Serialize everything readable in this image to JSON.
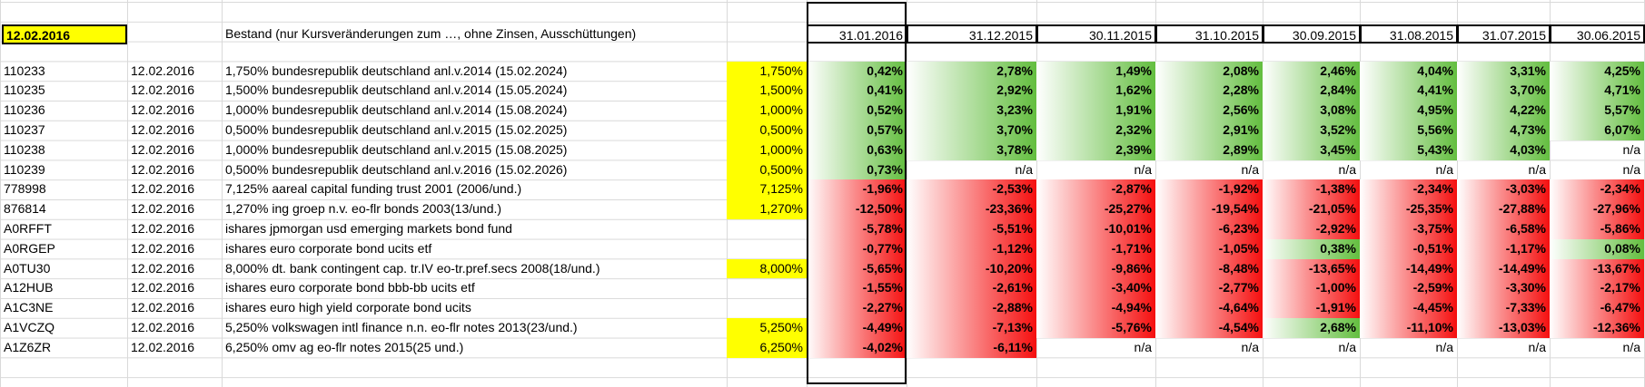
{
  "sheet": {
    "date_cell": "12.02.2016",
    "title": "Bestand (nur Kursveränderungen zum …, ohne Zinsen, Ausschüttungen)",
    "date_headers": [
      "31.01.2016",
      "31.12.2015",
      "30.11.2015",
      "31.10.2015",
      "30.09.2015",
      "31.08.2015",
      "31.07.2015",
      "30.06.2015"
    ],
    "rows": [
      {
        "id": "110233",
        "date": "12.02.2016",
        "name": "1,750% bundesrepublik deutschland anl.v.2014 (15.02.2024)",
        "coupon": "1,750%",
        "values": [
          "0,42%",
          "2,78%",
          "1,49%",
          "2,08%",
          "2,46%",
          "4,04%",
          "3,31%",
          "4,25%"
        ]
      },
      {
        "id": "110235",
        "date": "12.02.2016",
        "name": "1,500% bundesrepublik deutschland anl.v.2014 (15.05.2024)",
        "coupon": "1,500%",
        "values": [
          "0,41%",
          "2,92%",
          "1,62%",
          "2,28%",
          "2,84%",
          "4,41%",
          "3,70%",
          "4,71%"
        ]
      },
      {
        "id": "110236",
        "date": "12.02.2016",
        "name": "1,000% bundesrepublik deutschland anl.v.2014 (15.08.2024)",
        "coupon": "1,000%",
        "values": [
          "0,52%",
          "3,23%",
          "1,91%",
          "2,56%",
          "3,08%",
          "4,95%",
          "4,22%",
          "5,57%"
        ]
      },
      {
        "id": "110237",
        "date": "12.02.2016",
        "name": "0,500% bundesrepublik deutschland anl.v.2015 (15.02.2025)",
        "coupon": "0,500%",
        "values": [
          "0,57%",
          "3,70%",
          "2,32%",
          "2,91%",
          "3,52%",
          "5,56%",
          "4,73%",
          "6,07%"
        ]
      },
      {
        "id": "110238",
        "date": "12.02.2016",
        "name": "1,000% bundesrepublik deutschland anl.v.2015 (15.08.2025)",
        "coupon": "1,000%",
        "values": [
          "0,63%",
          "3,78%",
          "2,39%",
          "2,89%",
          "3,45%",
          "5,43%",
          "4,03%",
          "n/a"
        ]
      },
      {
        "id": "110239",
        "date": "12.02.2016",
        "name": "0,500% bundesrepublik deutschland anl.v.2016 (15.02.2026)",
        "coupon": "0,500%",
        "values": [
          "0,73%",
          "n/a",
          "n/a",
          "n/a",
          "n/a",
          "n/a",
          "n/a",
          "n/a"
        ]
      },
      {
        "id": "778998",
        "date": "12.02.2016",
        "name": "7,125% aareal capital funding trust 2001 (2006/und.)",
        "coupon": "7,125%",
        "values": [
          "-1,96%",
          "-2,53%",
          "-2,87%",
          "-1,92%",
          "-1,38%",
          "-2,34%",
          "-3,03%",
          "-2,34%"
        ]
      },
      {
        "id": "876814",
        "date": "12.02.2016",
        "name": "1,270% ing groep n.v. eo-flr bonds 2003(13/und.)",
        "coupon": "1,270%",
        "values": [
          "-12,50%",
          "-23,36%",
          "-25,27%",
          "-19,54%",
          "-21,05%",
          "-25,35%",
          "-27,88%",
          "-27,96%"
        ]
      },
      {
        "id": "A0RFFT",
        "date": "12.02.2016",
        "name": "ishares jpmorgan usd emerging markets bond fund",
        "coupon": "",
        "values": [
          "-5,78%",
          "-5,51%",
          "-10,01%",
          "-6,23%",
          "-2,92%",
          "-3,75%",
          "-6,58%",
          "-5,86%"
        ]
      },
      {
        "id": "A0RGEP",
        "date": "12.02.2016",
        "name": "ishares euro corporate bond ucits etf",
        "coupon": "",
        "values": [
          "-0,77%",
          "-1,12%",
          "-1,71%",
          "-1,05%",
          "0,38%",
          "-0,51%",
          "-1,17%",
          "0,08%"
        ]
      },
      {
        "id": "A0TU30",
        "date": "12.02.2016",
        "name": "8,000% dt. bank contingent cap. tr.IV eo-tr.pref.secs 2008(18/und.)",
        "coupon": "8,000%",
        "values": [
          "-5,65%",
          "-10,20%",
          "-9,86%",
          "-8,48%",
          "-13,65%",
          "-14,49%",
          "-14,49%",
          "-13,67%"
        ]
      },
      {
        "id": "A12HUB",
        "date": "12.02.2016",
        "name": "ishares euro corporate bond bbb-bb ucits etf",
        "coupon": "",
        "values": [
          "-1,55%",
          "-2,61%",
          "-3,40%",
          "-2,77%",
          "-1,00%",
          "-2,59%",
          "-3,30%",
          "-2,17%"
        ]
      },
      {
        "id": "A1C3NE",
        "date": "12.02.2016",
        "name": "ishares euro high yield corporate bond ucits",
        "coupon": "",
        "values": [
          "-2,27%",
          "-2,88%",
          "-4,94%",
          "-4,64%",
          "-1,91%",
          "-4,45%",
          "-7,33%",
          "-6,47%"
        ]
      },
      {
        "id": "A1VCZQ",
        "date": "12.02.2016",
        "name": "5,250% volkswagen intl finance n.n. eo-flr notes 2013(23/und.)",
        "coupon": "5,250%",
        "values": [
          "-4,49%",
          "-7,13%",
          "-5,76%",
          "-4,54%",
          "2,68%",
          "-11,10%",
          "-13,03%",
          "-12,36%"
        ]
      },
      {
        "id": "A1Z6ZR",
        "date": "12.02.2016",
        "name": "6,250% omv ag eo-flr notes 2015(25 und.)",
        "coupon": "6,250%",
        "values": [
          "-4,02%",
          "-6,11%",
          "n/a",
          "n/a",
          "n/a",
          "n/a",
          "n/a",
          "n/a"
        ]
      }
    ]
  },
  "colors": {
    "positive": "#63be3f",
    "negative": "#f50f0f",
    "highlight": "#ffff00"
  }
}
